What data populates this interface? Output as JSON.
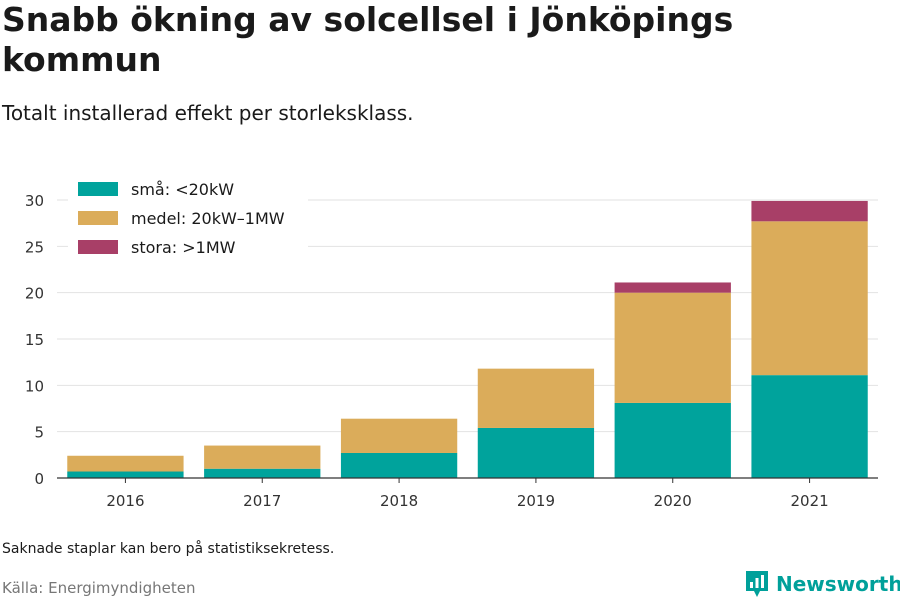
{
  "header": {
    "title": "Snabb ökning av solcellsel i Jönköpings kommun",
    "subtitle": "Totalt installerad effekt per storleksklass."
  },
  "footer": {
    "note": "Saknade staplar kan bero på statistiksekretess.",
    "source": "Källa: Energimyndigheten",
    "brand": "Newsworthy"
  },
  "colors": {
    "sma": "#00a39c",
    "medel": "#dbac5a",
    "stora": "#a83f67",
    "grid": "#e2e2e2",
    "axis": "#333333"
  },
  "chart_data": {
    "type": "bar",
    "stacked": true,
    "categories": [
      "2016",
      "2017",
      "2018",
      "2019",
      "2020",
      "2021"
    ],
    "series": [
      {
        "name": "små: <20kW",
        "color": "#00a39c",
        "values": [
          0.7,
          1.0,
          2.7,
          5.4,
          8.1,
          11.1
        ]
      },
      {
        "name": "medel: 20kW–1MW",
        "color": "#dbac5a",
        "values": [
          1.7,
          2.5,
          3.7,
          6.4,
          11.9,
          16.6
        ]
      },
      {
        "name": "stora: >1MW",
        "color": "#a83f67",
        "values": [
          0,
          0,
          0,
          0,
          1.1,
          2.2
        ]
      }
    ],
    "ylim": [
      0,
      30
    ],
    "yticks": [
      0,
      5,
      10,
      15,
      20,
      25,
      30
    ],
    "grid": true,
    "legend": "top-left"
  }
}
